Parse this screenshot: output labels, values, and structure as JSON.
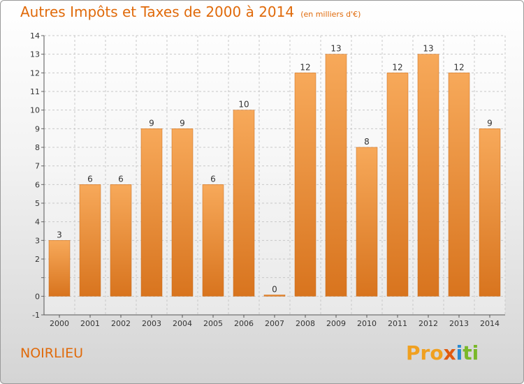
{
  "title": {
    "main": "Autres Impôts et Taxes de 2000 à 2014",
    "sub": "(en milliers d'€)"
  },
  "commune": "NOIRLIEU",
  "logo": {
    "text": "Proxiti",
    "parts": [
      "Pro",
      "x",
      "i",
      "ti"
    ]
  },
  "colors": {
    "accent": "#e06a0a",
    "bar_light": "#f7a95a",
    "bar_dark": "#d8741e"
  },
  "chart_data": {
    "type": "bar",
    "categories": [
      "2000",
      "2001",
      "2002",
      "2003",
      "2004",
      "2005",
      "2006",
      "2007",
      "2008",
      "2009",
      "2010",
      "2011",
      "2012",
      "2013",
      "2014"
    ],
    "values": [
      3,
      6,
      6,
      9,
      9,
      6,
      10,
      0,
      12,
      13,
      8,
      12,
      13,
      12,
      9
    ],
    "ylim": [
      -1,
      14
    ],
    "yticks": [
      "-1",
      "0",
      "",
      "2",
      "3",
      "4",
      "5",
      "6",
      "7",
      "8",
      "9",
      "10",
      "11",
      "12",
      "13",
      "14"
    ],
    "grid": true
  }
}
